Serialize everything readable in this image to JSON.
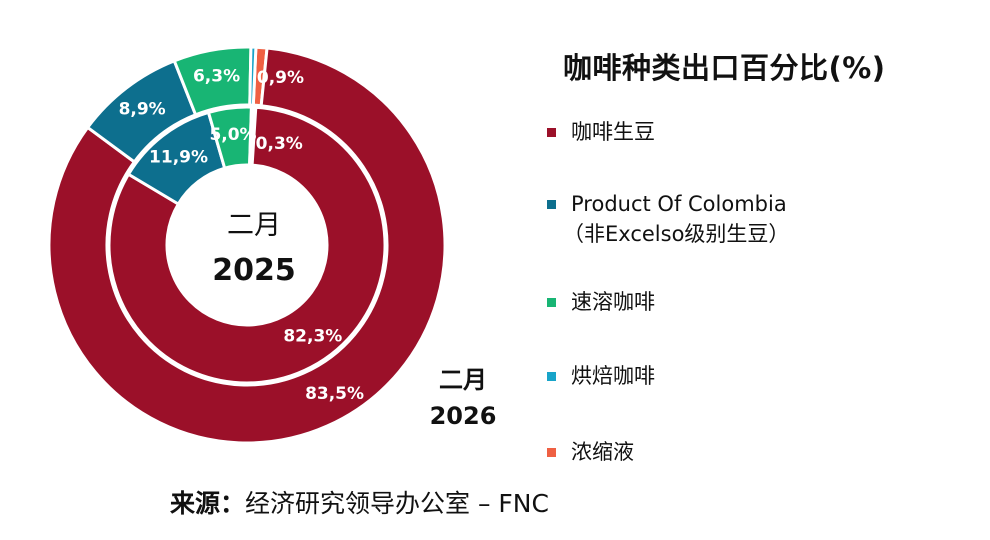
{
  "chart_data": {
    "type": "donut",
    "title": "咖啡种类出口百分比(%)",
    "categories": [
      "咖啡生豆",
      "Product Of Colombia（非Excelso级别生豆）",
      "速溶咖啡",
      "烘焙咖啡",
      "浓缩液"
    ],
    "colors": [
      "#9b1029",
      "#0d6f8e",
      "#18b574",
      "#18a4c9",
      "#ef6043"
    ],
    "series": [
      {
        "name": "二月 2025",
        "ring": "inner",
        "values": [
          82.3,
          11.9,
          5.0,
          0.2,
          0.3
        ],
        "labels": [
          "82,3%",
          "11,9%",
          "5,0%",
          "",
          "0,3%"
        ]
      },
      {
        "name": "二月 2026",
        "ring": "outer",
        "values": [
          83.5,
          8.9,
          6.3,
          0.4,
          0.9
        ],
        "labels": [
          "83,5%",
          "8,9%",
          "6,3%",
          "",
          "0,9%"
        ]
      }
    ]
  },
  "center": {
    "line1": "二月",
    "line2": "2025"
  },
  "outer_caption": {
    "line1": "二月",
    "line2": "2026"
  },
  "legend": {
    "title": "咖啡种类出口百分比(%)",
    "items": [
      {
        "label": "咖啡生豆",
        "color": "#9b1029"
      },
      {
        "label": "Product Of Colombia",
        "sub": "（非Excelso级别生豆）",
        "color": "#0d6f8e"
      },
      {
        "label": "速溶咖啡",
        "color": "#18b574"
      },
      {
        "label": "烘焙咖啡",
        "color": "#18a4c9"
      },
      {
        "label": "浓缩液",
        "color": "#ef6043"
      }
    ]
  },
  "source": {
    "prefix": "来源：",
    "text": "经济研究领导办公室 – FNC"
  }
}
